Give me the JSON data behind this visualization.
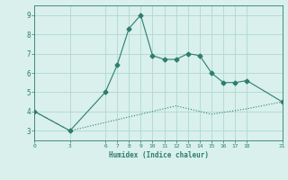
{
  "line1_x": [
    0,
    3,
    6,
    7,
    8,
    9,
    10,
    11,
    12,
    13,
    14,
    15,
    16,
    17,
    18,
    21
  ],
  "line1_y": [
    4.0,
    3.0,
    5.0,
    6.4,
    8.3,
    9.0,
    6.9,
    6.7,
    6.7,
    7.0,
    6.9,
    6.0,
    5.5,
    5.5,
    5.6,
    4.5
  ],
  "line2_x": [
    0,
    3,
    6,
    9,
    12,
    15,
    18,
    21
  ],
  "line2_y": [
    4.0,
    3.0,
    3.43,
    3.86,
    4.29,
    3.86,
    4.14,
    4.5
  ],
  "line_color": "#2e7d6e",
  "bg_color": "#d9f0ec",
  "grid_color": "#b0d9d0",
  "xlabel": "Humidex (Indice chaleur)",
  "xticks": [
    0,
    3,
    6,
    7,
    8,
    9,
    10,
    11,
    12,
    13,
    14,
    15,
    16,
    17,
    18,
    21
  ],
  "yticks": [
    3,
    4,
    5,
    6,
    7,
    8,
    9
  ],
  "xlim": [
    0,
    21
  ],
  "ylim": [
    2.5,
    9.5
  ]
}
